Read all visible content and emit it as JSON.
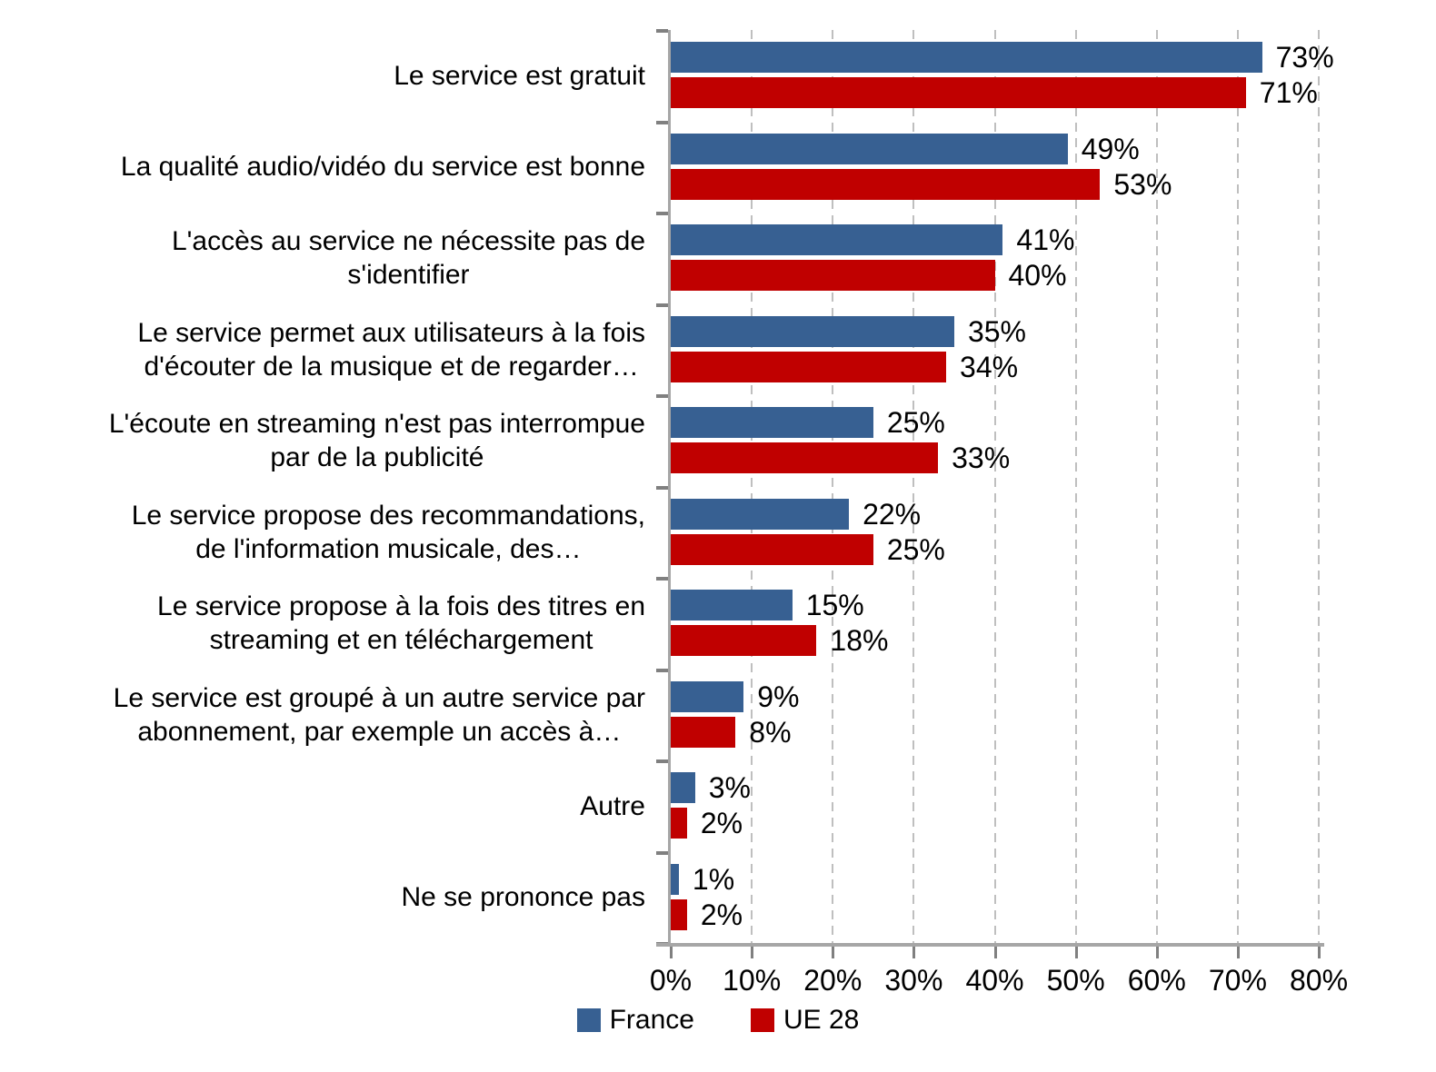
{
  "chart_data": {
    "type": "bar",
    "orientation": "horizontal",
    "title": "",
    "xlabel": "",
    "ylabel": "",
    "xlim": [
      0,
      80
    ],
    "x_ticks": [
      "0%",
      "10%",
      "20%",
      "30%",
      "40%",
      "50%",
      "60%",
      "70%",
      "80%"
    ],
    "grid": "vertical-dashed",
    "legend_position": "bottom",
    "value_suffix": "%",
    "categories": [
      "Le service est gratuit",
      "La qualité audio/vidéo du service est bonne",
      "L'accès au service ne nécessite pas de\ns'identifier",
      "Le service permet aux utilisateurs à la fois\nd'écouter de la musique et de regarder…",
      "L'écoute en streaming n'est pas interrompue\npar de la publicité",
      "Le service propose des recommandations,\nde l'information musicale, des…",
      "Le service propose à la fois des titres en\nstreaming et en téléchargement",
      "Le service est groupé à un autre service par\nabonnement, par exemple un accès à…",
      "Autre",
      "Ne se prononce pas"
    ],
    "series": [
      {
        "name": "France",
        "color": "#376092",
        "values": [
          73,
          49,
          41,
          35,
          25,
          22,
          15,
          9,
          3,
          1
        ]
      },
      {
        "name": "UE 28",
        "color": "#C00000",
        "values": [
          71,
          53,
          40,
          34,
          33,
          25,
          18,
          8,
          2,
          2
        ]
      }
    ]
  },
  "legend": {
    "items": [
      {
        "label": "France",
        "color": "#376092"
      },
      {
        "label": "UE 28",
        "color": "#C00000"
      }
    ]
  },
  "colors": {
    "axis_line": "#A6A6A6",
    "axis_tick": "#808080",
    "gridline": "#BFBFBF",
    "text": "#000000",
    "background": "#FFFFFF"
  }
}
